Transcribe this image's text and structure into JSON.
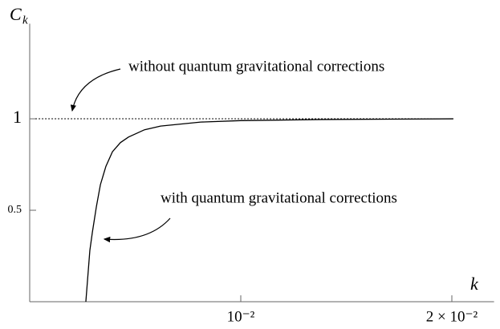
{
  "chart_data": {
    "type": "line",
    "y_label": "C",
    "y_label_subscript": "k",
    "x_label": "k",
    "annotations": [
      "without quantum gravitational corrections",
      "with quantum gravitational corrections"
    ],
    "xlim": [
      0,
      0.022
    ],
    "ylim": [
      0,
      1.52
    ],
    "xticks": [
      {
        "value": 0.01,
        "label": "10⁻²"
      },
      {
        "value": 0.02,
        "label": "2 × 10⁻²"
      }
    ],
    "yticks": [
      0.5,
      1
    ],
    "series": [
      {
        "color": "#000000",
        "style": "solid",
        "x": [
          0.00266,
          0.00285,
          0.00297,
          0.00316,
          0.00335,
          0.00361,
          0.00392,
          0.0043,
          0.00468,
          0.00544,
          0.0062,
          0.0081,
          0.01,
          0.0138,
          0.02007
        ],
        "values": [
          0,
          0.28,
          0.38,
          0.52,
          0.64,
          0.74,
          0.82,
          0.87,
          0.9,
          0.94,
          0.96,
          0.982,
          0.99,
          0.996,
          1
        ]
      },
      {
        "color": "#000000",
        "style": "dotted",
        "x": [
          0.00027,
          0.02007
        ],
        "values": [
          1,
          1
        ]
      }
    ]
  }
}
